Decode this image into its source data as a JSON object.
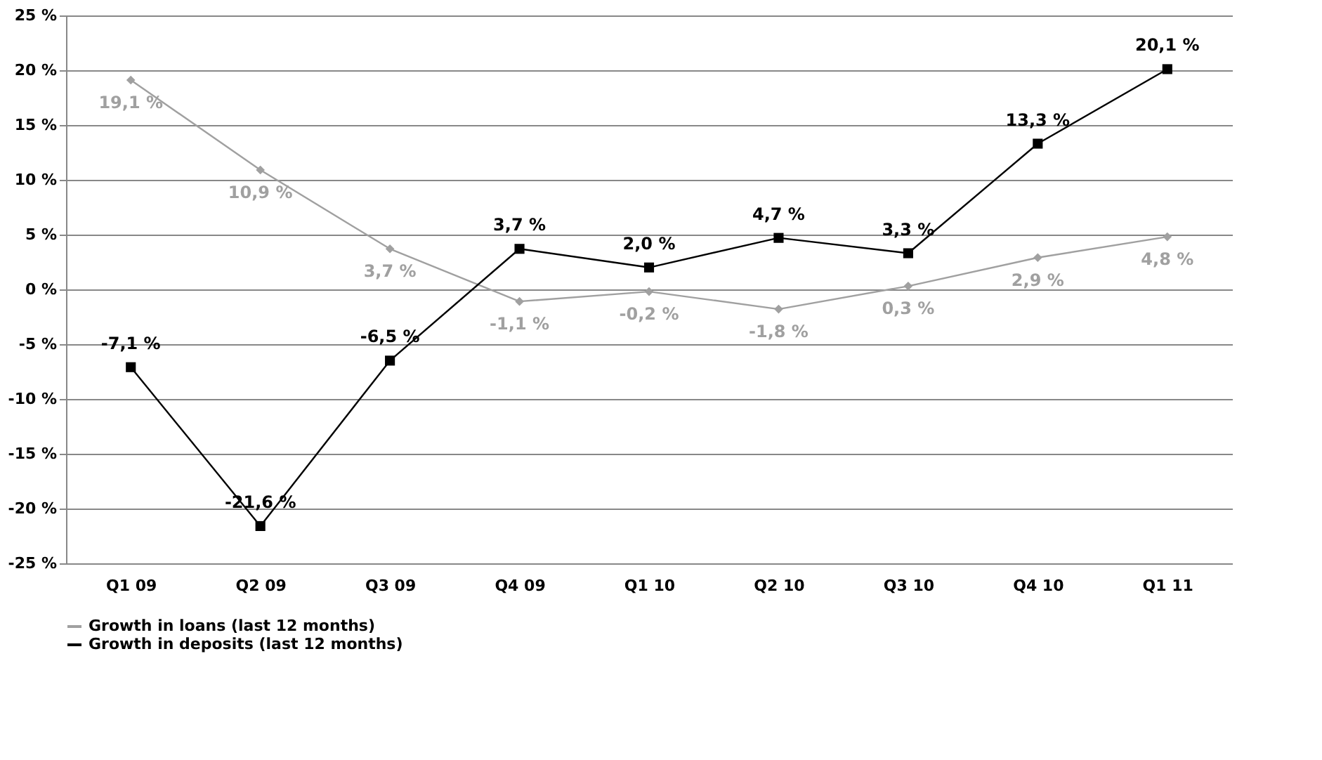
{
  "chart_data": {
    "type": "line",
    "categories": [
      "Q1 09",
      "Q2 09",
      "Q3 09",
      "Q4 09",
      "Q1 10",
      "Q2 10",
      "Q3 10",
      "Q4 10",
      "Q1 11"
    ],
    "series": [
      {
        "name": "Growth in loans (last 12 months)",
        "color": "#a0a0a0",
        "marker": "diamond",
        "values": [
          19.1,
          10.9,
          3.7,
          -1.1,
          -0.2,
          -1.8,
          0.3,
          2.9,
          4.8
        ],
        "value_labels": [
          "19,1 %",
          "10,9 %",
          "3,7 %",
          "-1,1 %",
          "-0,2 %",
          "-1,8 %",
          "0,3 %",
          "2,9 %",
          "4,8 %"
        ]
      },
      {
        "name": "Growth in deposits (last 12 months)",
        "color": "#000000",
        "marker": "square",
        "values": [
          -7.1,
          -21.6,
          -6.5,
          3.7,
          2.0,
          4.7,
          3.3,
          13.3,
          20.1
        ],
        "value_labels": [
          "-7,1 %",
          "-21,6 %",
          "-6,5 %",
          "3,7 %",
          "2,0 %",
          "4,7 %",
          "3,3 %",
          "13,3 %",
          "20,1 %"
        ]
      }
    ],
    "ylim": [
      -25,
      25
    ],
    "yticks": [
      {
        "value": -25,
        "label": "-25 %"
      },
      {
        "value": -20,
        "label": "-20 %"
      },
      {
        "value": -15,
        "label": "-15 %"
      },
      {
        "value": -10,
        "label": "-10 %"
      },
      {
        "value": -5,
        "label": "-5 %"
      },
      {
        "value": 0,
        "label": "0 %"
      },
      {
        "value": 5,
        "label": "5 %"
      },
      {
        "value": 10,
        "label": "10 %"
      },
      {
        "value": 15,
        "label": "15 %"
      },
      {
        "value": 20,
        "label": "20 %"
      },
      {
        "value": 25,
        "label": "25 %"
      }
    ],
    "grid": "y",
    "legend": "bottom",
    "line_style": "solid"
  }
}
